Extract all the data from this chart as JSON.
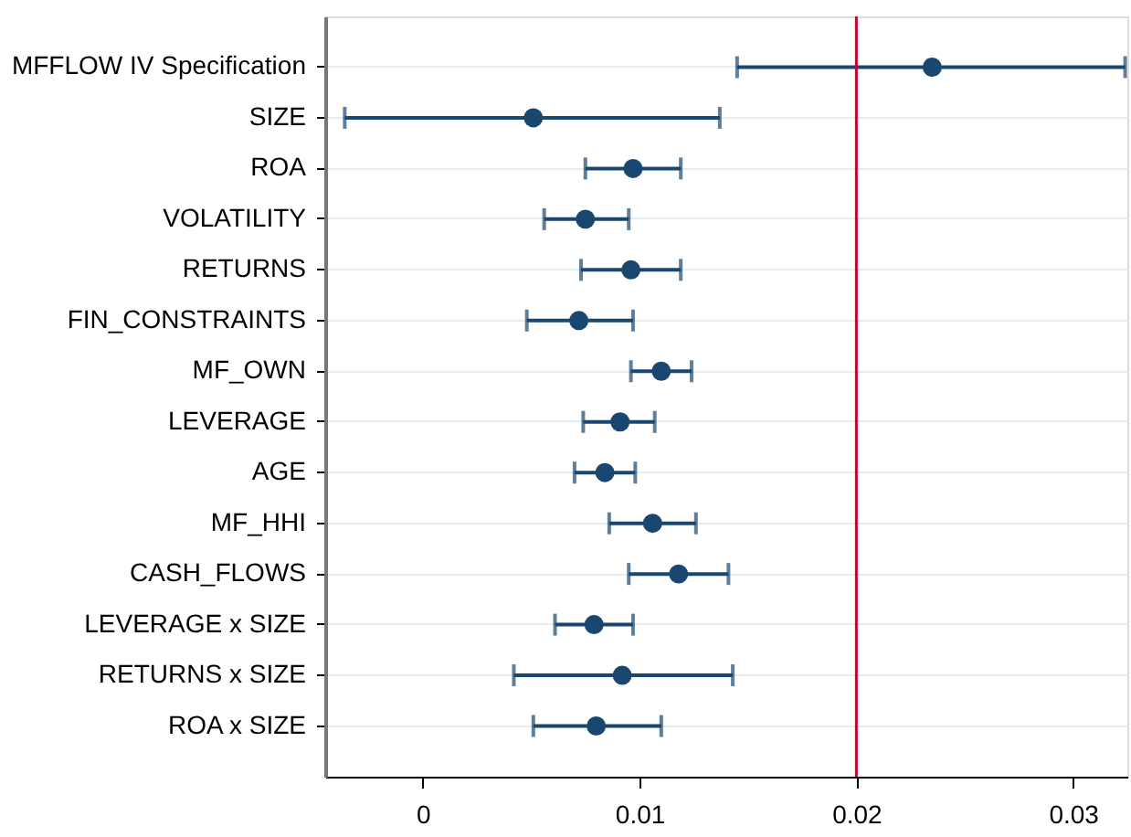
{
  "chart_data": {
    "type": "scatter",
    "orientation": "horizontal",
    "categories": [
      "MFFLOW IV Specification",
      "SIZE",
      "ROA",
      "VOLATILITY",
      "RETURNS",
      "FIN_CONSTRAINTS",
      "MF_OWN",
      "LEVERAGE",
      "AGE",
      "MF_HHI",
      "CASH_FLOWS",
      "LEVERAGE x SIZE",
      "RETURNS x SIZE",
      "ROA x SIZE"
    ],
    "series": [
      {
        "color": "#1a476f",
        "values": [
          0.0235,
          0.0051,
          0.0097,
          0.0075,
          0.0096,
          0.0072,
          0.011,
          0.0091,
          0.0084,
          0.0106,
          0.0118,
          0.0079,
          0.0092,
          0.008
        ],
        "errors": [
          [
            0.0145,
            0.0324
          ],
          [
            -0.0036,
            0.0137
          ],
          [
            0.0075,
            0.0119
          ],
          [
            0.0056,
            0.0095
          ],
          [
            0.0073,
            0.0119
          ],
          [
            0.0048,
            0.0097
          ],
          [
            0.0096,
            0.0124
          ],
          [
            0.0074,
            0.0107
          ],
          [
            0.007,
            0.0098
          ],
          [
            0.0086,
            0.0126
          ],
          [
            0.0095,
            0.0141
          ],
          [
            0.0061,
            0.0097
          ],
          [
            0.0042,
            0.0143
          ],
          [
            0.0051,
            0.011
          ]
        ]
      }
    ],
    "xlim": [
      -0.0045,
      0.0325
    ],
    "xticks": [
      0,
      0.01,
      0.02,
      0.03
    ],
    "ref_lines": [
      {
        "axis": "x",
        "value": 0.02,
        "color": "#c10534"
      }
    ],
    "grid": "y",
    "marker": "circle"
  }
}
